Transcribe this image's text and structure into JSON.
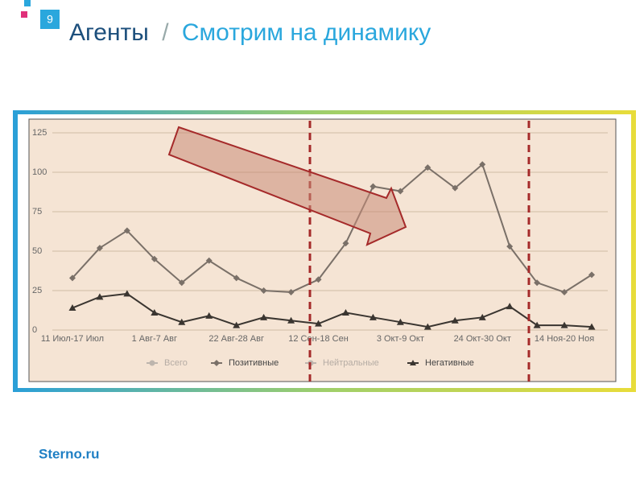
{
  "slide": {
    "number": 9,
    "title": "Агенты",
    "separator": "/",
    "subtitle": "Смотрим на динамику",
    "footer": "Sterno.ru"
  },
  "chart_data": {
    "type": "line",
    "categories": [
      "11 Июл-17 Июл",
      null,
      null,
      "1 Авг-7 Авг",
      null,
      null,
      "22 Авг-28 Авг",
      null,
      null,
      "12 Сен-18 Сен",
      null,
      null,
      "3 Окт-9 Окт",
      null,
      null,
      "24 Окт-30 Окт",
      null,
      null,
      "14 Ноя-20 Ноя",
      null
    ],
    "series": [
      {
        "name": "Позитивные",
        "color": "#7a7068",
        "marker": "diamond",
        "values": [
          33,
          52,
          63,
          45,
          30,
          44,
          33,
          25,
          24,
          32,
          55,
          91,
          88,
          103,
          90,
          105,
          53,
          30,
          24,
          35
        ]
      },
      {
        "name": "Негативные",
        "color": "#3a3530",
        "marker": "triangle",
        "values": [
          14,
          21,
          23,
          11,
          5,
          9,
          3,
          8,
          6,
          4,
          11,
          8,
          5,
          2,
          6,
          8,
          15,
          3,
          3,
          2
        ]
      }
    ],
    "inactive_series": [
      {
        "name": "Всего",
        "color": "#bdb5ad"
      },
      {
        "name": "Нейтральные",
        "color": "#bdb5ad"
      }
    ],
    "ylim": [
      0,
      125
    ],
    "yticks": [
      0,
      25,
      50,
      75,
      100,
      125
    ],
    "grid": true,
    "legend": "bottom"
  }
}
